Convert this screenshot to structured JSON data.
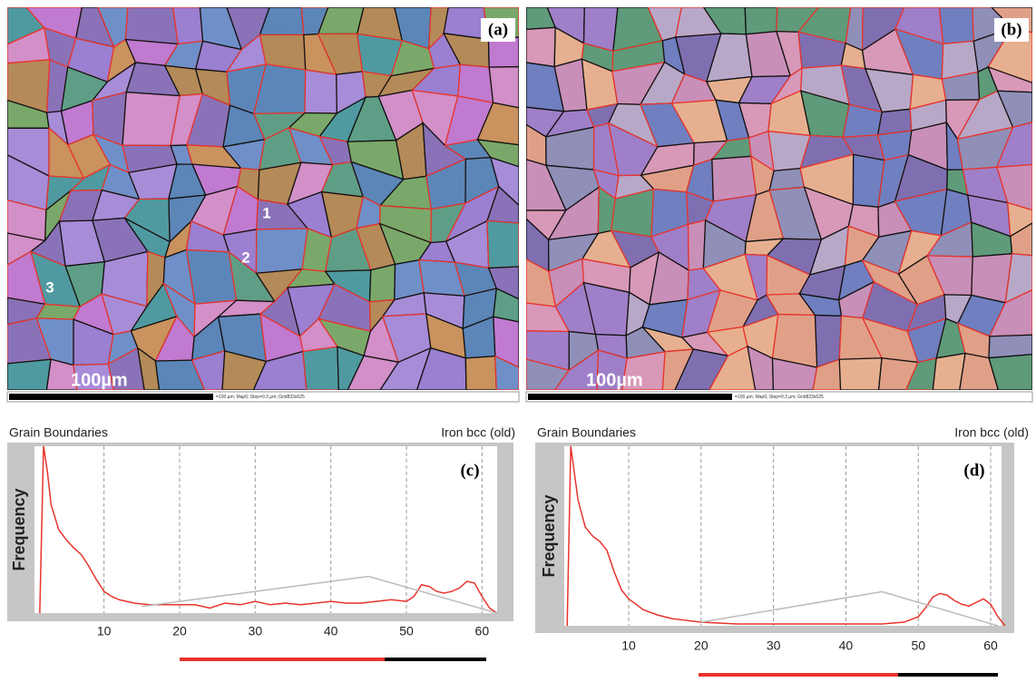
{
  "panels": [
    {
      "label": "(a)",
      "scale_text": "100µm",
      "scale_info": "=100 µm; Map6; Step=0.3 µm; Grid833x625",
      "markers": [
        "1",
        "2",
        "3"
      ]
    },
    {
      "label": "(b)",
      "scale_text": "100µm",
      "scale_info": "=100 µm; Map6; Step=0.3 µm; Grid833x625"
    }
  ],
  "chart_data": [
    {
      "type": "line",
      "title": "Grain Boundaries",
      "annotation": "Iron bcc (old)",
      "label": "(c)",
      "ylabel": "Frequency",
      "xlim": [
        0.8,
        62
      ],
      "ylim": [
        0,
        1
      ],
      "xticks": [
        10,
        20,
        30,
        40,
        50,
        60
      ],
      "grid": true,
      "series": [
        {
          "color": "#e8342c",
          "x": [
            1.5,
            2,
            2.5,
            3,
            4,
            5,
            6,
            7,
            8,
            9,
            10,
            11,
            12,
            14,
            16,
            18,
            20,
            22,
            24,
            26,
            28,
            30,
            32,
            34,
            36,
            38,
            40,
            42,
            44,
            46,
            48,
            50,
            51,
            52,
            53,
            54,
            55,
            56,
            57,
            58,
            59,
            60,
            61,
            62
          ],
          "values": [
            0,
            1,
            0.85,
            0.65,
            0.5,
            0.44,
            0.39,
            0.35,
            0.28,
            0.2,
            0.13,
            0.1,
            0.08,
            0.06,
            0.05,
            0.05,
            0.05,
            0.05,
            0.03,
            0.06,
            0.05,
            0.07,
            0.05,
            0.06,
            0.05,
            0.06,
            0.07,
            0.06,
            0.06,
            0.07,
            0.08,
            0.07,
            0.1,
            0.17,
            0.16,
            0.13,
            0.12,
            0.13,
            0.15,
            0.19,
            0.18,
            0.1,
            0.03,
            0
          ]
        },
        {
          "color": "#bbbbbb",
          "x": [
            15,
            45,
            62
          ],
          "values": [
            0.04,
            0.22,
            0
          ]
        }
      ]
    },
    {
      "type": "line",
      "title": "Grain Boundaries",
      "annotation": "Iron bcc (old)",
      "label": "(d)",
      "ylabel": "Frequency",
      "xlim": [
        1.1,
        61.5
      ],
      "ylim": [
        0,
        1
      ],
      "xticks": [
        10,
        20,
        30,
        40,
        50,
        60
      ],
      "grid": true,
      "series": [
        {
          "color": "#e8342c",
          "x": [
            1.5,
            2,
            2.5,
            3,
            4,
            5,
            6,
            7,
            8,
            9,
            10,
            12,
            14,
            16,
            18,
            20,
            25,
            30,
            35,
            40,
            45,
            48,
            50,
            51,
            52,
            53,
            54,
            55,
            56,
            57,
            58,
            59,
            60,
            61,
            62
          ],
          "values": [
            0,
            1,
            0.85,
            0.7,
            0.55,
            0.5,
            0.47,
            0.42,
            0.3,
            0.2,
            0.15,
            0.09,
            0.06,
            0.04,
            0.03,
            0.02,
            0.01,
            0.01,
            0.01,
            0.01,
            0.01,
            0.02,
            0.05,
            0.1,
            0.16,
            0.18,
            0.17,
            0.14,
            0.12,
            0.11,
            0.13,
            0.15,
            0.12,
            0.05,
            0
          ]
        },
        {
          "color": "#bbbbbb",
          "x": [
            20,
            45,
            61
          ],
          "values": [
            0.02,
            0.19,
            0
          ]
        }
      ]
    }
  ]
}
